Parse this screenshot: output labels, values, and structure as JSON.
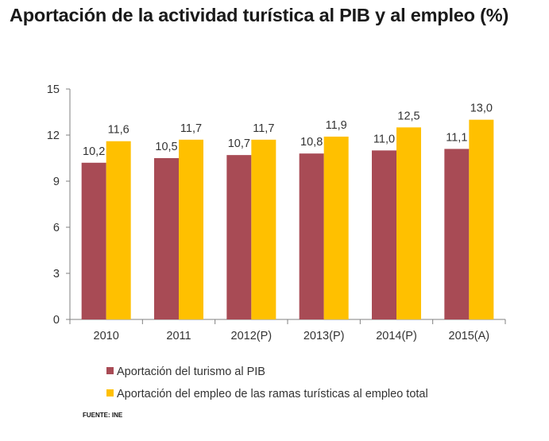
{
  "title": "Aportación de la actividad turística al PIB y al empleo (%)",
  "source": "FUENTE: INE",
  "colors": {
    "pib": "#a84b55",
    "empleo": "#ffc000",
    "axis": "#808080"
  },
  "chart_data": {
    "type": "bar",
    "title": "Aportación de la actividad turística al PIB y al empleo (%)",
    "categories": [
      "2010",
      "2011",
      "2012(P)",
      "2013(P)",
      "2014(P)",
      "2015(A)"
    ],
    "series": [
      {
        "name": "Aportación del turismo al PIB",
        "values": [
          10.2,
          10.5,
          10.7,
          10.8,
          11.0,
          11.1
        ],
        "labels": [
          "10,2",
          "10,5",
          "10,7",
          "10,8",
          "11,0",
          "11,1"
        ]
      },
      {
        "name": "Aportación del empleo de las ramas turísticas al empleo total",
        "values": [
          11.6,
          11.7,
          11.7,
          11.9,
          12.5,
          13.0
        ],
        "labels": [
          "11,6",
          "11,7",
          "11,7",
          "11,9",
          "12,5",
          "13,0"
        ]
      }
    ],
    "yticks": [
      "0",
      "3",
      "6",
      "9",
      "12",
      "15"
    ],
    "ylim": [
      0,
      15
    ],
    "grid": false,
    "legend": "bottom-left"
  }
}
